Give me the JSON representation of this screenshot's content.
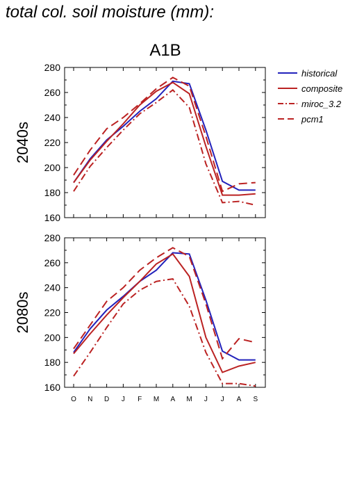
{
  "figure": {
    "title": "total col. soil moisture (mm):",
    "scenario_title": "A1B"
  },
  "legend": {
    "entries": [
      {
        "name": "historical",
        "color": "#2222bb",
        "dash": "solid"
      },
      {
        "name": "composite",
        "color": "#bb2222",
        "dash": "solid"
      },
      {
        "name": "miroc_3.2",
        "color": "#bb2222",
        "dash": "dashdot"
      },
      {
        "name": "pcm1",
        "color": "#bb2222",
        "dash": "dashed"
      }
    ]
  },
  "chart_data": [
    {
      "type": "line",
      "panel_label": "2040s",
      "categories": [
        "O",
        "N",
        "D",
        "J",
        "F",
        "M",
        "A",
        "M",
        "J",
        "J",
        "A",
        "S"
      ],
      "ylim": [
        160,
        280
      ],
      "yticks": [
        160,
        180,
        200,
        220,
        240,
        260,
        280
      ],
      "series": [
        {
          "name": "historical",
          "values": [
            188,
            207,
            222,
            233,
            245,
            255,
            269,
            267,
            230,
            189,
            182,
            182
          ]
        },
        {
          "name": "composite",
          "values": [
            188,
            206,
            221,
            235,
            250,
            261,
            268,
            259,
            217,
            178,
            178,
            179
          ]
        },
        {
          "name": "miroc_3.2",
          "values": [
            181,
            201,
            216,
            230,
            243,
            252,
            262,
            248,
            203,
            172,
            173,
            170
          ]
        },
        {
          "name": "pcm1",
          "values": [
            194,
            214,
            231,
            240,
            251,
            263,
            272,
            265,
            225,
            181,
            187,
            188
          ]
        }
      ]
    },
    {
      "type": "line",
      "panel_label": "2080s",
      "categories": [
        "O",
        "N",
        "D",
        "J",
        "F",
        "M",
        "A",
        "M",
        "J",
        "J",
        "A",
        "S"
      ],
      "ylim": [
        160,
        280
      ],
      "yticks": [
        160,
        180,
        200,
        220,
        240,
        260,
        280
      ],
      "series": [
        {
          "name": "historical",
          "values": [
            188,
            207,
            222,
            233,
            245,
            254,
            268,
            267,
            230,
            189,
            182,
            182
          ]
        },
        {
          "name": "composite",
          "values": [
            187,
            203,
            218,
            232,
            245,
            259,
            267,
            249,
            200,
            172,
            177,
            180
          ]
        },
        {
          "name": "miroc_3.2",
          "values": [
            169,
            188,
            208,
            227,
            238,
            245,
            247,
            225,
            188,
            163,
            163,
            161
          ]
        },
        {
          "name": "pcm1",
          "values": [
            191,
            210,
            229,
            240,
            254,
            264,
            272,
            265,
            227,
            183,
            199,
            196
          ]
        }
      ]
    }
  ]
}
